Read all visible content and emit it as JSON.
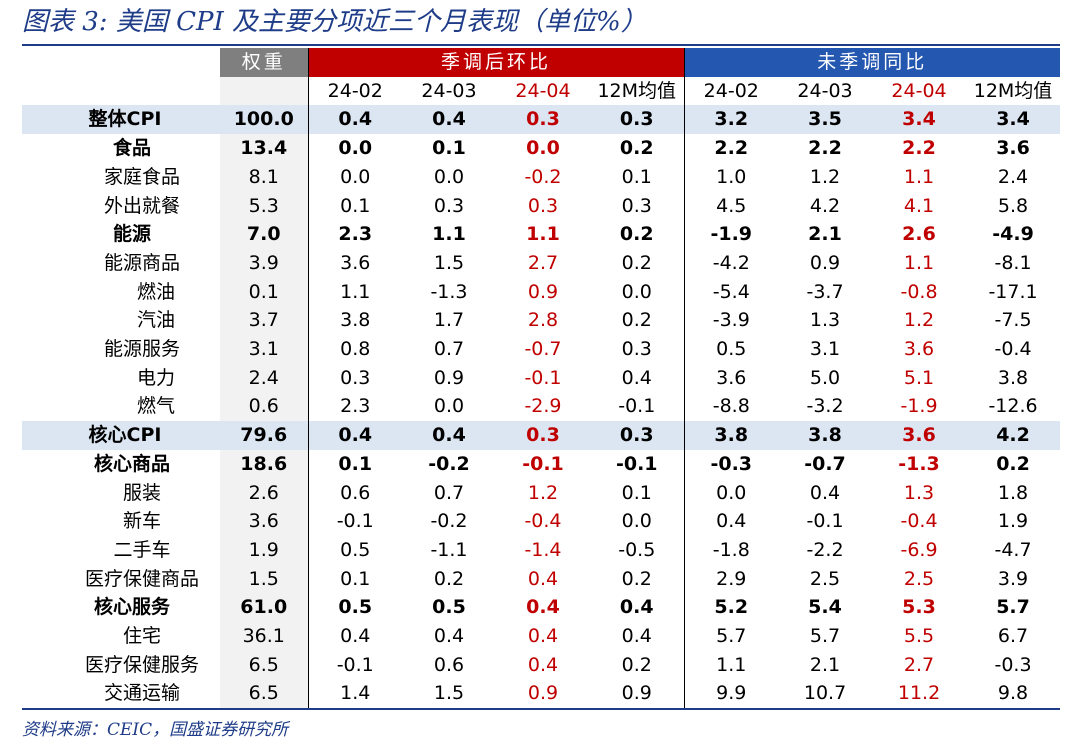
{
  "title": "图表 3:  美国 CPI 及主要分项近三个月表现（单位%）",
  "source": "资料来源：CEIC，国盛证券研究所",
  "colors": {
    "header_weight": "#7f7f7f",
    "header_sa": "#c00000",
    "header_nsa": "#2457b0",
    "latest_month": "#c00000",
    "total_row_bg": "#dce6f2",
    "title_blue": "#1f3c88"
  },
  "headers": {
    "weight": "权重",
    "sa_group": "季调后环比",
    "nsa_group": "未季调同比",
    "sa_cols": [
      "24-02",
      "24-03",
      "24-04",
      "12M均值"
    ],
    "nsa_cols": [
      "24-02",
      "24-03",
      "24-04",
      "12M均值"
    ]
  },
  "rows": [
    {
      "label": "整体CPI",
      "weight": "100.0",
      "sa": [
        "0.4",
        "0.4",
        "0.3",
        "0.3"
      ],
      "nsa": [
        "3.2",
        "3.5",
        "3.4",
        "3.4"
      ]
    },
    {
      "label": "食品",
      "weight": "13.4",
      "sa": [
        "0.0",
        "0.1",
        "0.0",
        "0.2"
      ],
      "nsa": [
        "2.2",
        "2.2",
        "2.2",
        "3.6"
      ]
    },
    {
      "label": "家庭食品",
      "weight": "8.1",
      "sa": [
        "0.0",
        "0.0",
        "-0.2",
        "0.1"
      ],
      "nsa": [
        "1.0",
        "1.2",
        "1.1",
        "2.4"
      ]
    },
    {
      "label": "外出就餐",
      "weight": "5.3",
      "sa": [
        "0.1",
        "0.3",
        "0.3",
        "0.3"
      ],
      "nsa": [
        "4.5",
        "4.2",
        "4.1",
        "5.8"
      ]
    },
    {
      "label": "能源",
      "weight": "7.0",
      "sa": [
        "2.3",
        "1.1",
        "1.1",
        "0.2"
      ],
      "nsa": [
        "-1.9",
        "2.1",
        "2.6",
        "-4.9"
      ]
    },
    {
      "label": "能源商品",
      "weight": "3.9",
      "sa": [
        "3.6",
        "1.5",
        "2.7",
        "0.2"
      ],
      "nsa": [
        "-4.2",
        "0.9",
        "1.1",
        "-8.1"
      ]
    },
    {
      "label": "燃油",
      "weight": "0.1",
      "sa": [
        "1.1",
        "-1.3",
        "0.9",
        "0.0"
      ],
      "nsa": [
        "-5.4",
        "-3.7",
        "-0.8",
        "-17.1"
      ]
    },
    {
      "label": "汽油",
      "weight": "3.7",
      "sa": [
        "3.8",
        "1.7",
        "2.8",
        "0.2"
      ],
      "nsa": [
        "-3.9",
        "1.3",
        "1.2",
        "-7.5"
      ]
    },
    {
      "label": "能源服务",
      "weight": "3.1",
      "sa": [
        "0.8",
        "0.7",
        "-0.7",
        "0.3"
      ],
      "nsa": [
        "0.5",
        "3.1",
        "3.6",
        "-0.4"
      ]
    },
    {
      "label": "电力",
      "weight": "2.4",
      "sa": [
        "0.3",
        "0.9",
        "-0.1",
        "0.4"
      ],
      "nsa": [
        "3.6",
        "5.0",
        "5.1",
        "3.8"
      ]
    },
    {
      "label": "燃气",
      "weight": "0.6",
      "sa": [
        "2.3",
        "0.0",
        "-2.9",
        "-0.1"
      ],
      "nsa": [
        "-8.8",
        "-3.2",
        "-1.9",
        "-12.6"
      ]
    },
    {
      "label": "核心CPI",
      "weight": "79.6",
      "sa": [
        "0.4",
        "0.4",
        "0.3",
        "0.3"
      ],
      "nsa": [
        "3.8",
        "3.8",
        "3.6",
        "4.2"
      ]
    },
    {
      "label": "核心商品",
      "weight": "18.6",
      "sa": [
        "0.1",
        "-0.2",
        "-0.1",
        "-0.1"
      ],
      "nsa": [
        "-0.3",
        "-0.7",
        "-1.3",
        "0.2"
      ]
    },
    {
      "label": "服装",
      "weight": "2.6",
      "sa": [
        "0.6",
        "0.7",
        "1.2",
        "0.1"
      ],
      "nsa": [
        "0.0",
        "0.4",
        "1.3",
        "1.8"
      ]
    },
    {
      "label": "新车",
      "weight": "3.6",
      "sa": [
        "-0.1",
        "-0.2",
        "-0.4",
        "0.0"
      ],
      "nsa": [
        "0.4",
        "-0.1",
        "-0.4",
        "1.9"
      ]
    },
    {
      "label": "二手车",
      "weight": "1.9",
      "sa": [
        "0.5",
        "-1.1",
        "-1.4",
        "-0.5"
      ],
      "nsa": [
        "-1.8",
        "-2.2",
        "-6.9",
        "-4.7"
      ]
    },
    {
      "label": "医疗保健商品",
      "weight": "1.5",
      "sa": [
        "0.1",
        "0.2",
        "0.4",
        "0.2"
      ],
      "nsa": [
        "2.9",
        "2.5",
        "2.5",
        "3.9"
      ]
    },
    {
      "label": "核心服务",
      "weight": "61.0",
      "sa": [
        "0.5",
        "0.5",
        "0.4",
        "0.4"
      ],
      "nsa": [
        "5.2",
        "5.4",
        "5.3",
        "5.7"
      ]
    },
    {
      "label": "住宅",
      "weight": "36.1",
      "sa": [
        "0.4",
        "0.4",
        "0.4",
        "0.4"
      ],
      "nsa": [
        "5.7",
        "5.7",
        "5.5",
        "6.7"
      ]
    },
    {
      "label": "医疗保健服务",
      "weight": "6.5",
      "sa": [
        "-0.1",
        "0.6",
        "0.4",
        "0.2"
      ],
      "nsa": [
        "1.1",
        "2.1",
        "2.7",
        "-0.3"
      ]
    },
    {
      "label": "交通运输",
      "weight": "6.5",
      "sa": [
        "1.4",
        "1.5",
        "0.9",
        "0.9"
      ],
      "nsa": [
        "9.9",
        "10.7",
        "11.2",
        "9.8"
      ]
    }
  ]
}
